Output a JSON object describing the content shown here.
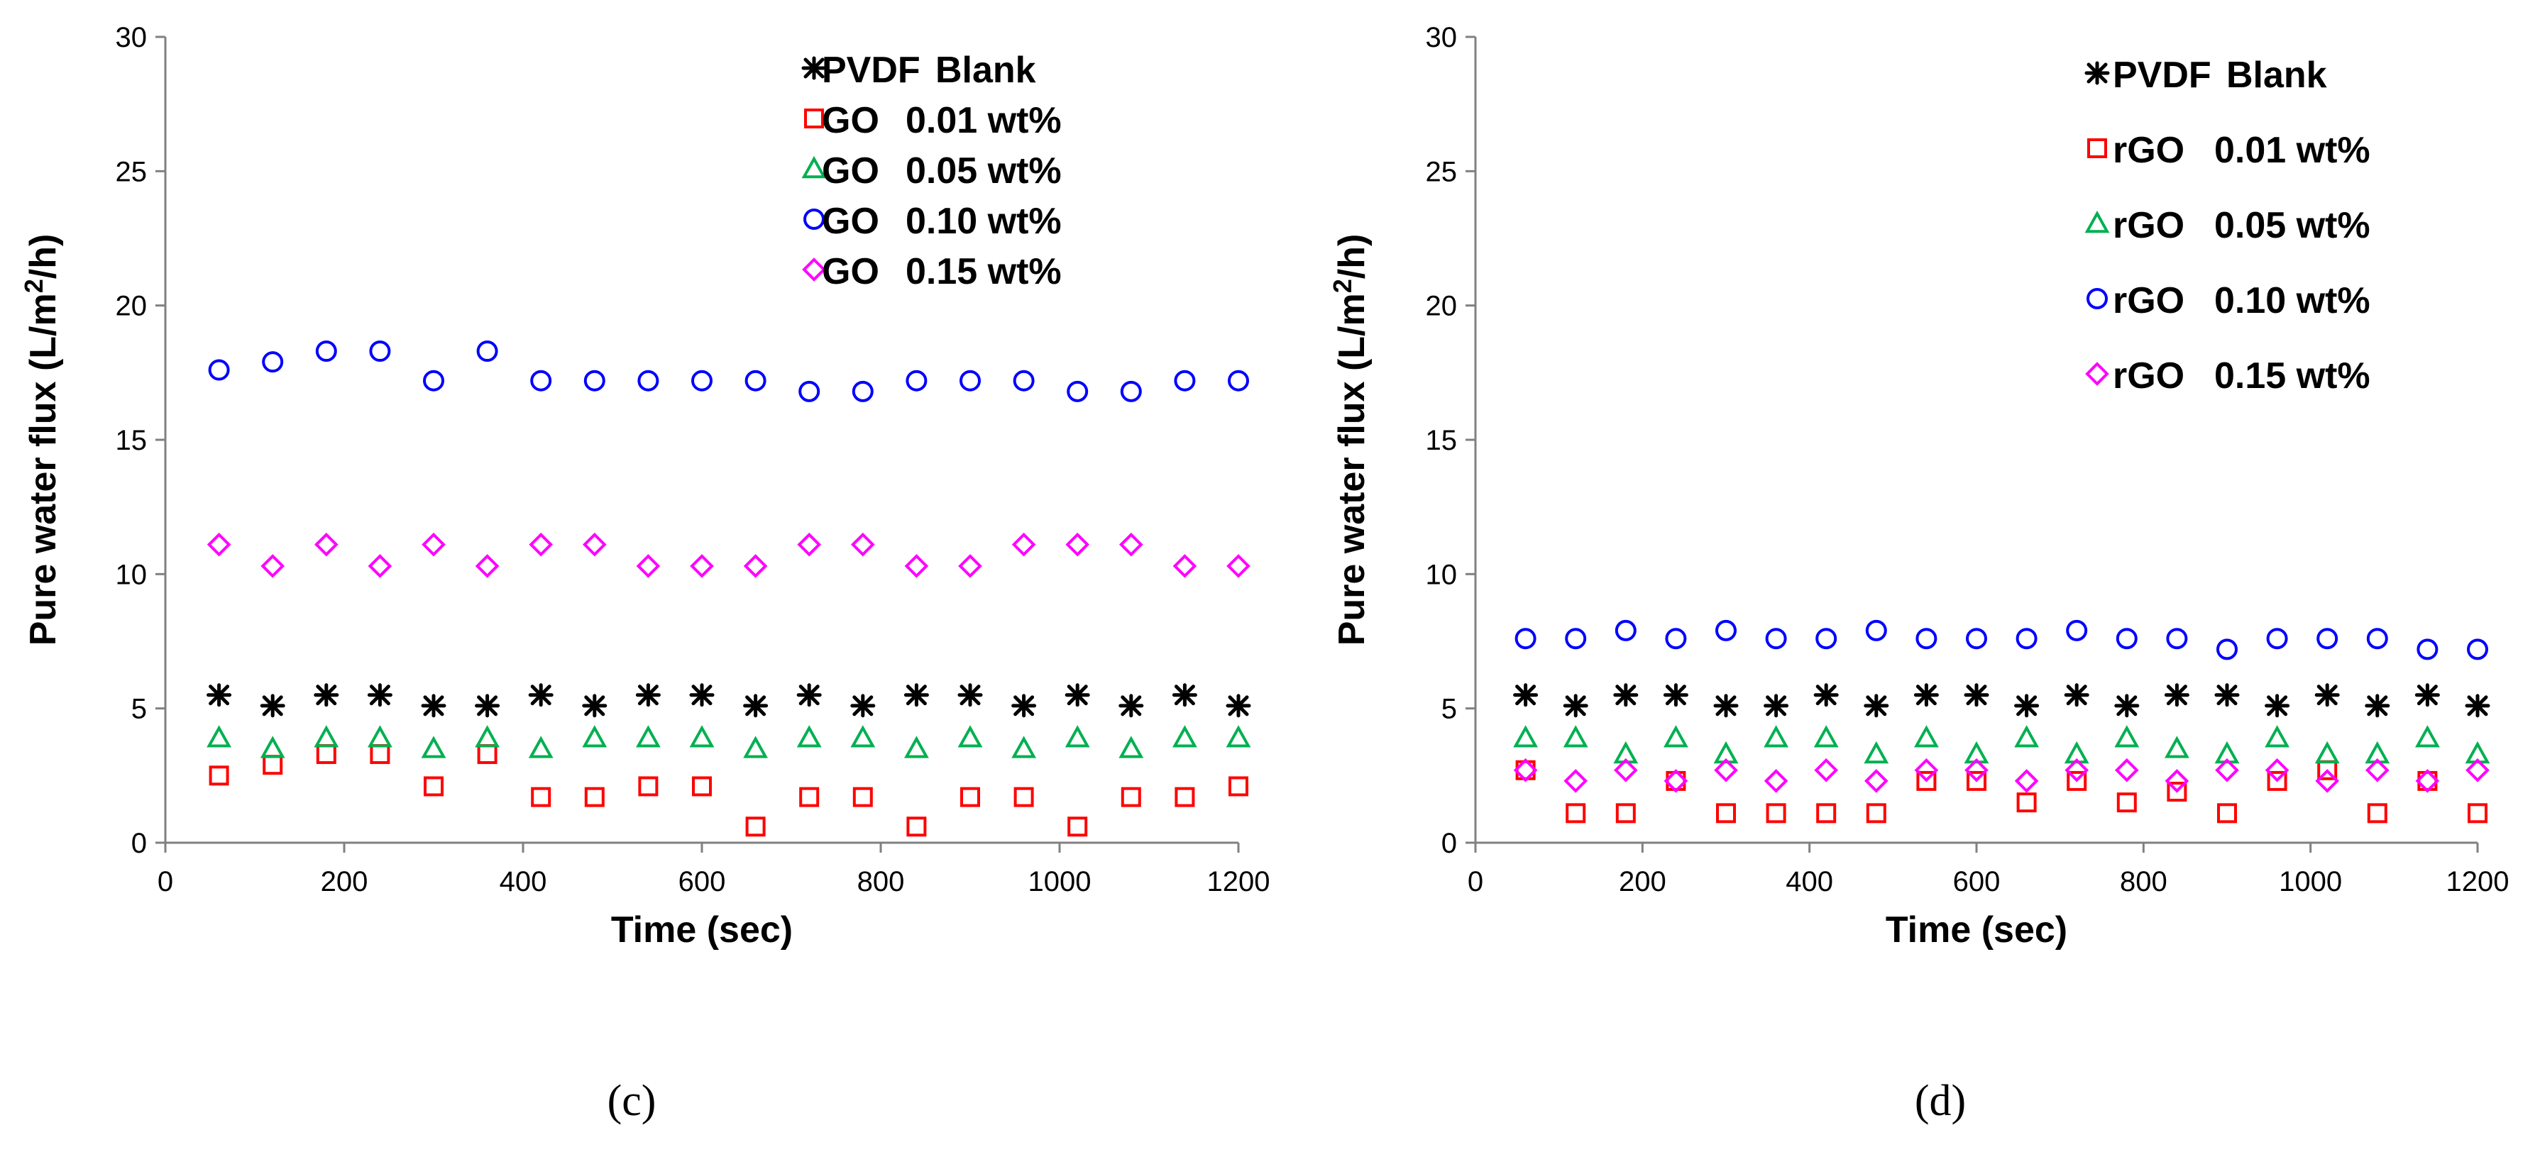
{
  "chart_data": [
    {
      "type": "scatter",
      "panel_label": "(c)",
      "xlabel": "Time (sec)",
      "ylabel": "Pure water flux (L/m2/h)",
      "xlim": [
        0,
        1200
      ],
      "ylim": [
        0,
        30
      ],
      "xticks": [
        0,
        200,
        400,
        600,
        800,
        1000,
        1200
      ],
      "yticks": [
        0,
        5,
        10,
        15,
        20,
        25,
        30
      ],
      "x": [
        60,
        120,
        180,
        240,
        300,
        360,
        420,
        480,
        540,
        600,
        660,
        720,
        780,
        840,
        900,
        960,
        1020,
        1080,
        1140,
        1200
      ],
      "legend_position": "top-right",
      "series": [
        {
          "name": "PVDF",
          "label": "Blank",
          "marker": "asterisk",
          "color": "#000000",
          "values": [
            5.5,
            5.1,
            5.5,
            5.5,
            5.1,
            5.1,
            5.5,
            5.1,
            5.5,
            5.5,
            5.1,
            5.5,
            5.1,
            5.5,
            5.5,
            5.1,
            5.5,
            5.1,
            5.5,
            5.1
          ]
        },
        {
          "name": "GO",
          "label": "0.01 wt%",
          "marker": "square",
          "color": "#ff0000",
          "values": [
            2.5,
            2.9,
            3.3,
            3.3,
            2.1,
            3.3,
            1.7,
            1.7,
            2.1,
            2.1,
            0.6,
            1.7,
            1.7,
            0.6,
            1.7,
            1.7,
            0.6,
            1.7,
            1.7,
            2.1
          ]
        },
        {
          "name": "GO",
          "label": "0.05 wt%",
          "marker": "triangle",
          "color": "#00b050",
          "values": [
            3.9,
            3.5,
            3.9,
            3.9,
            3.5,
            3.9,
            3.5,
            3.9,
            3.9,
            3.9,
            3.5,
            3.9,
            3.9,
            3.5,
            3.9,
            3.5,
            3.9,
            3.5,
            3.9,
            3.9
          ]
        },
        {
          "name": "GO",
          "label": "0.10 wt%",
          "marker": "circle",
          "color": "#0000ff",
          "values": [
            17.6,
            17.9,
            18.3,
            18.3,
            17.2,
            18.3,
            17.2,
            17.2,
            17.2,
            17.2,
            17.2,
            16.8,
            16.8,
            17.2,
            17.2,
            17.2,
            16.8,
            16.8,
            17.2,
            17.2
          ]
        },
        {
          "name": "GO",
          "label": "0.15 wt%",
          "marker": "diamond",
          "color": "#ff00ff",
          "values": [
            11.1,
            10.3,
            11.1,
            10.3,
            11.1,
            10.3,
            11.1,
            11.1,
            10.3,
            10.3,
            10.3,
            11.1,
            11.1,
            10.3,
            10.3,
            11.1,
            11.1,
            11.1,
            10.3,
            10.3
          ]
        }
      ]
    },
    {
      "type": "scatter",
      "panel_label": "(d)",
      "xlabel": "Time (sec)",
      "ylabel": "Pure water flux (L/m2/h)",
      "xlim": [
        0,
        1200
      ],
      "ylim": [
        0,
        30
      ],
      "xticks": [
        0,
        200,
        400,
        600,
        800,
        1000,
        1200
      ],
      "yticks": [
        0,
        5,
        10,
        15,
        20,
        25,
        30
      ],
      "x": [
        60,
        120,
        180,
        240,
        300,
        360,
        420,
        480,
        540,
        600,
        660,
        720,
        780,
        840,
        900,
        960,
        1020,
        1080,
        1140,
        1200
      ],
      "legend_position": "top-right",
      "series": [
        {
          "name": "PVDF",
          "label": "Blank",
          "marker": "asterisk",
          "color": "#000000",
          "values": [
            5.5,
            5.1,
            5.5,
            5.5,
            5.1,
            5.1,
            5.5,
            5.1,
            5.5,
            5.5,
            5.1,
            5.5,
            5.1,
            5.5,
            5.5,
            5.1,
            5.5,
            5.1,
            5.5,
            5.1
          ]
        },
        {
          "name": "rGO",
          "label": "0.01 wt%",
          "marker": "square",
          "color": "#ff0000",
          "values": [
            2.7,
            1.1,
            1.1,
            2.3,
            1.1,
            1.1,
            1.1,
            1.1,
            2.3,
            2.3,
            1.5,
            2.3,
            1.5,
            1.9,
            1.1,
            2.3,
            2.7,
            1.1,
            2.3,
            1.1
          ]
        },
        {
          "name": "rGO",
          "label": "0.05 wt%",
          "marker": "triangle",
          "color": "#00b050",
          "values": [
            3.9,
            3.9,
            3.3,
            3.9,
            3.3,
            3.9,
            3.9,
            3.3,
            3.9,
            3.3,
            3.9,
            3.3,
            3.9,
            3.5,
            3.3,
            3.9,
            3.3,
            3.3,
            3.9,
            3.3
          ]
        },
        {
          "name": "rGO",
          "label": "0.10 wt%",
          "marker": "circle",
          "color": "#0000ff",
          "values": [
            7.6,
            7.6,
            7.9,
            7.6,
            7.9,
            7.6,
            7.6,
            7.9,
            7.6,
            7.6,
            7.6,
            7.9,
            7.6,
            7.6,
            7.2,
            7.6,
            7.6,
            7.6,
            7.2,
            7.2
          ]
        },
        {
          "name": "rGO",
          "label": "0.15 wt%",
          "marker": "diamond",
          "color": "#ff00ff",
          "values": [
            2.7,
            2.3,
            2.7,
            2.3,
            2.7,
            2.3,
            2.7,
            2.3,
            2.7,
            2.7,
            2.3,
            2.7,
            2.7,
            2.3,
            2.7,
            2.7,
            2.3,
            2.7,
            2.3,
            2.7
          ]
        }
      ]
    }
  ]
}
